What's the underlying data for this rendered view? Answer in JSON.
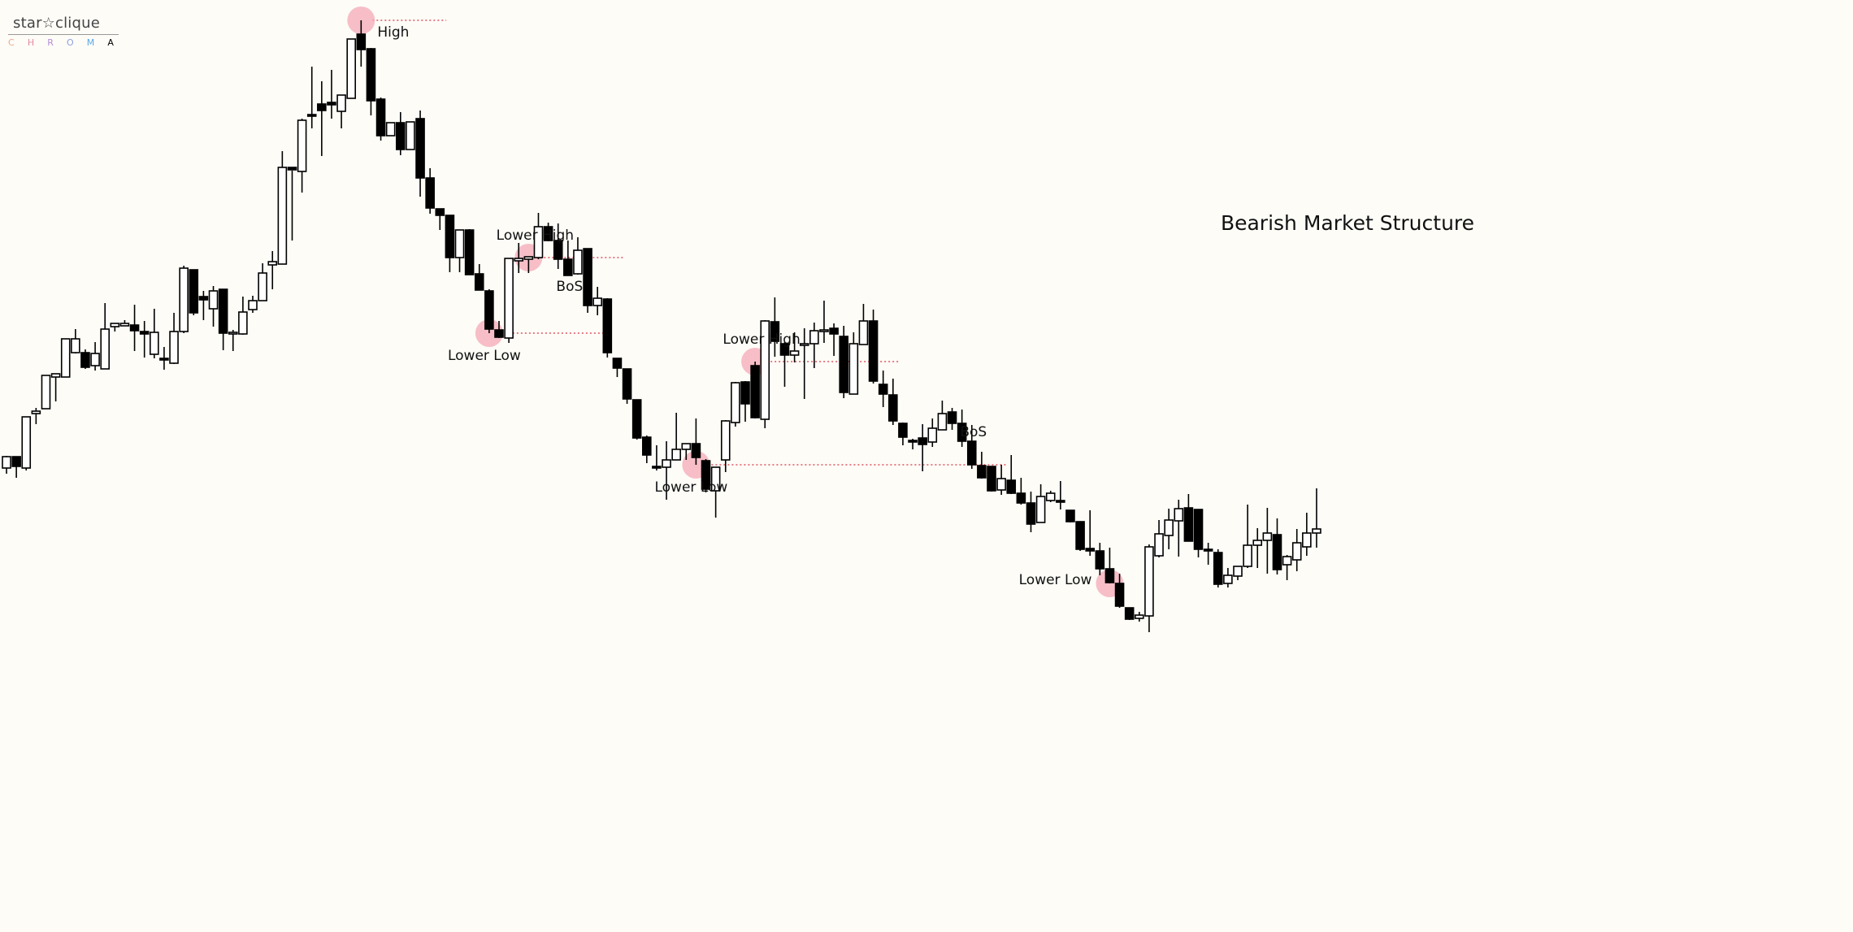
{
  "brand": {
    "name": "star☆clique",
    "sub_letters": [
      "C",
      "H",
      "R",
      "O",
      "M",
      "A"
    ]
  },
  "chart_data": {
    "type": "candlestick",
    "title": "Bearish Market Structure",
    "y_axis_shown": false,
    "grid": false,
    "colors": {
      "bullish_body": "#ffffff",
      "bearish_body": "#000000",
      "marker": "#f4a9b7",
      "level_line": "#e0535f"
    },
    "candles_ohlc": [
      [
        576,
        562,
        583,
        561
      ],
      [
        562,
        574,
        588,
        562
      ],
      [
        576,
        513,
        579,
        513
      ],
      [
        509,
        506,
        522,
        502
      ],
      [
        503,
        462,
        503,
        502
      ],
      [
        464,
        460,
        494,
        462
      ],
      [
        464,
        417,
        464,
        462
      ],
      [
        434,
        417,
        405,
        435
      ],
      [
        434,
        452,
        454,
        430
      ],
      [
        450,
        435,
        456,
        421
      ],
      [
        454,
        405,
        373,
        454
      ],
      [
        402,
        398,
        399,
        408
      ],
      [
        401,
        398,
        394,
        401
      ],
      [
        400,
        407,
        375,
        432
      ],
      [
        408,
        411,
        395,
        440
      ],
      [
        436,
        409,
        380,
        441
      ],
      [
        441,
        443,
        427,
        455
      ],
      [
        447,
        408,
        385,
        448
      ],
      [
        408,
        330,
        327,
        410
      ],
      [
        332,
        385,
        332,
        388
      ],
      [
        365,
        369,
        358,
        394
      ],
      [
        380,
        358,
        352,
        402
      ],
      [
        356,
        410,
        356,
        431
      ],
      [
        410,
        409,
        406,
        432
      ],
      [
        411,
        384,
        365,
        412
      ],
      [
        381,
        370,
        364,
        385
      ],
      [
        370,
        336,
        324,
        370
      ],
      [
        326,
        322,
        309,
        356
      ],
      [
        325,
        206,
        186,
        324
      ],
      [
        206,
        209,
        210,
        296
      ],
      [
        211,
        148,
        146,
        237
      ],
      [
        141,
        142,
        82,
        158
      ],
      [
        128,
        136,
        100,
        192
      ],
      [
        126,
        129,
        86,
        146
      ],
      [
        137,
        117,
        135,
        158
      ],
      [
        121,
        48,
        120,
        120
      ],
      [
        42,
        61,
        25,
        82
      ],
      [
        60,
        124,
        59,
        142
      ],
      [
        122,
        167,
        120,
        173
      ],
      [
        167,
        151,
        172,
        172
      ],
      [
        151,
        184,
        138,
        191
      ],
      [
        184,
        150,
        152,
        179
      ],
      [
        146,
        219,
        136,
        242
      ],
      [
        219,
        256,
        207,
        263
      ],
      [
        257,
        265,
        260,
        283
      ],
      [
        265,
        317,
        275,
        335
      ],
      [
        317,
        283,
        283,
        335
      ],
      [
        283,
        338,
        282,
        336
      ],
      [
        337,
        357,
        325,
        352
      ],
      [
        358,
        405,
        356,
        410
      ],
      [
        406,
        415,
        395,
        416
      ],
      [
        416,
        318,
        320,
        422
      ],
      [
        321,
        318,
        299,
        336
      ],
      [
        319,
        316,
        317,
        336
      ],
      [
        317,
        279,
        262,
        319
      ],
      [
        279,
        296,
        274,
        297
      ],
      [
        296,
        319,
        275,
        331
      ],
      [
        319,
        339,
        296,
        336
      ],
      [
        337,
        308,
        292,
        338
      ],
      [
        306,
        376,
        306,
        385
      ],
      [
        376,
        367,
        353,
        388
      ],
      [
        368,
        434,
        367,
        440
      ],
      [
        441,
        453,
        443,
        464
      ],
      [
        454,
        491,
        456,
        497
      ],
      [
        492,
        539,
        495,
        541
      ],
      [
        538,
        560,
        536,
        570
      ],
      [
        574,
        574,
        548,
        579
      ],
      [
        575,
        566,
        543,
        615
      ],
      [
        566,
        553,
        508,
        566
      ],
      [
        553,
        546,
        550,
        566
      ],
      [
        546,
        563,
        515,
        572
      ],
      [
        567,
        602,
        565,
        606
      ],
      [
        604,
        575,
        586,
        637
      ],
      [
        566,
        518,
        517,
        581
      ],
      [
        520,
        471,
        470,
        525
      ],
      [
        470,
        497,
        469,
        519
      ],
      [
        450,
        514,
        445,
        515
      ],
      [
        516,
        395,
        394,
        527
      ],
      [
        396,
        420,
        366,
        439
      ],
      [
        423,
        437,
        421,
        476
      ],
      [
        437,
        432,
        409,
        446
      ],
      [
        425,
        423,
        404,
        491
      ],
      [
        423,
        407,
        397,
        453
      ],
      [
        407,
        406,
        370,
        422
      ],
      [
        404,
        411,
        398,
        438
      ],
      [
        414,
        483,
        401,
        490
      ],
      [
        485,
        423,
        409,
        484
      ],
      [
        424,
        395,
        374,
        404
      ],
      [
        395,
        469,
        381,
        472
      ],
      [
        473,
        485,
        456,
        501
      ],
      [
        486,
        518,
        466,
        523
      ],
      [
        521,
        538,
        520,
        548
      ],
      [
        542,
        544,
        540,
        553
      ],
      [
        539,
        547,
        522,
        580
      ],
      [
        544,
        527,
        515,
        550
      ],
      [
        529,
        509,
        493,
        517
      ],
      [
        507,
        521,
        502,
        529
      ],
      [
        521,
        543,
        504,
        550
      ],
      [
        543,
        572,
        523,
        577
      ],
      [
        573,
        588,
        556,
        589
      ],
      [
        574,
        604,
        574,
        605
      ],
      [
        603,
        589,
        572,
        609
      ],
      [
        591,
        607,
        560,
        608
      ],
      [
        607,
        619,
        588,
        621
      ],
      [
        619,
        645,
        605,
        655
      ],
      [
        643,
        611,
        596,
        639
      ],
      [
        616,
        607,
        604,
        618
      ],
      [
        616,
        617,
        592,
        627
      ],
      [
        628,
        642,
        629,
        643
      ],
      [
        642,
        676,
        642,
        678
      ],
      [
        675,
        678,
        628,
        684
      ],
      [
        678,
        700,
        668,
        708
      ],
      [
        700,
        717,
        674,
        718
      ],
      [
        718,
        746,
        706,
        748
      ],
      [
        748,
        762,
        750,
        763
      ],
      [
        761,
        757,
        753,
        765
      ],
      [
        758,
        673,
        670,
        778
      ],
      [
        684,
        657,
        640,
        686
      ],
      [
        659,
        640,
        626,
        676
      ],
      [
        641,
        626,
        615,
        685
      ],
      [
        625,
        666,
        608,
        666
      ],
      [
        627,
        676,
        628,
        686
      ],
      [
        676,
        678,
        668,
        695
      ],
      [
        680,
        719,
        676,
        723
      ],
      [
        718,
        708,
        699,
        723
      ],
      [
        709,
        697,
        697,
        714
      ],
      [
        697,
        671,
        621,
        699
      ],
      [
        671,
        665,
        650,
        699
      ],
      [
        665,
        656,
        625,
        706
      ],
      [
        658,
        701,
        638,
        707
      ],
      [
        695,
        685,
        683,
        714
      ],
      [
        689,
        668,
        651,
        703
      ],
      [
        673,
        656,
        631,
        684
      ],
      [
        656,
        651,
        601,
        674
      ]
    ],
    "annotations": [
      {
        "label": "High",
        "candle_index": 36,
        "point": "high",
        "text_pos": "right",
        "line_to_candle": 43
      },
      {
        "label": "Lower High",
        "candle_index": 53,
        "point": "high",
        "text_pos": "above",
        "line_to_candle": 61
      },
      {
        "label": "Lower Low",
        "candle_index": 49,
        "point": "low",
        "text_pos": "below",
        "line_to_candle": 59
      },
      {
        "label": "BoS",
        "candle_index": 57,
        "point": "level",
        "text_pos": "below"
      },
      {
        "label": "Lower High",
        "candle_index": 76,
        "point": "high",
        "text_pos": "above",
        "line_to_candle": 89
      },
      {
        "label": "Lower Low",
        "candle_index": 70,
        "point": "low",
        "text_pos": "below",
        "line_to_candle": 100
      },
      {
        "label": "BoS",
        "candle_index": 98,
        "point": "level",
        "text_pos": "below"
      },
      {
        "label": "Lower Low",
        "candle_index": 112,
        "point": "low",
        "text_pos": "left"
      }
    ]
  }
}
